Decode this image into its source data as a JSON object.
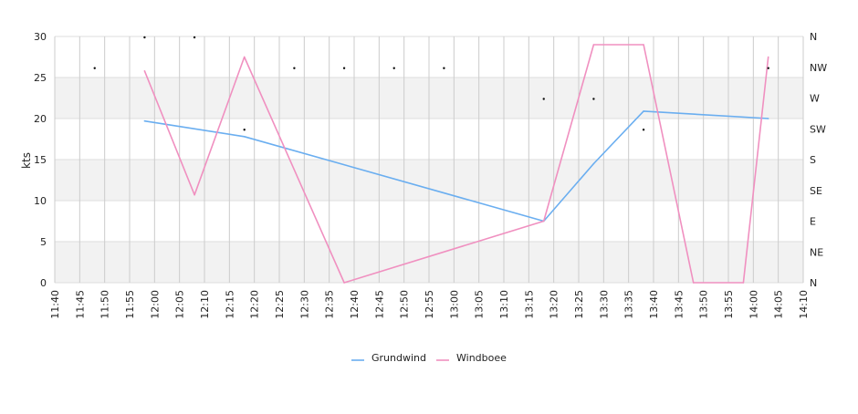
{
  "chart_data": {
    "type": "line",
    "title": "",
    "xlabel": "",
    "ylabel": "kts",
    "ylim": [
      0,
      30
    ],
    "y_ticks": [
      0,
      5,
      10,
      15,
      20,
      25,
      30
    ],
    "x_ticks": [
      "11:40",
      "11:45",
      "11:50",
      "11:55",
      "12:00",
      "12:05",
      "12:10",
      "12:15",
      "12:20",
      "12:25",
      "12:30",
      "12:35",
      "12:40",
      "12:45",
      "12:50",
      "12:55",
      "13:00",
      "13:05",
      "13:10",
      "13:15",
      "13:20",
      "13:25",
      "13:30",
      "13:35",
      "13:40",
      "13:45",
      "13:50",
      "13:55",
      "14:00",
      "14:05",
      "14:10"
    ],
    "x_range": [
      "11:40",
      "14:10"
    ],
    "right_axis_ticks": [
      "N",
      "NE",
      "E",
      "SE",
      "S",
      "SW",
      "W",
      "NW",
      "N"
    ],
    "grid": true,
    "legend_position": "bottom",
    "series": [
      {
        "name": "Grundwind",
        "color": "#6aaef0",
        "points": [
          {
            "x": "11:58",
            "y": 19.7
          },
          {
            "x": "12:18",
            "y": 17.8
          },
          {
            "x": "13:18",
            "y": 7.5
          },
          {
            "x": "13:28",
            "y": 14.5
          },
          {
            "x": "13:38",
            "y": 20.9
          },
          {
            "x": "14:03",
            "y": 20.0
          }
        ]
      },
      {
        "name": "Windboee",
        "color": "#f090c0",
        "points": [
          {
            "x": "11:58",
            "y": 25.8
          },
          {
            "x": "12:08",
            "y": 10.7
          },
          {
            "x": "12:18",
            "y": 27.5
          },
          {
            "x": "12:38",
            "y": 0
          },
          {
            "x": "13:18",
            "y": 7.5
          },
          {
            "x": "13:28",
            "y": 29.0
          },
          {
            "x": "13:38",
            "y": 29.0
          },
          {
            "x": "13:48",
            "y": 0
          },
          {
            "x": "13:58",
            "y": 0
          },
          {
            "x": "14:03",
            "y": 27.5
          }
        ]
      }
    ],
    "direction_markers": [
      {
        "x": "11:48",
        "dir": "NW"
      },
      {
        "x": "11:58",
        "dir": "N"
      },
      {
        "x": "12:08",
        "dir": "N"
      },
      {
        "x": "12:18",
        "dir": "SW"
      },
      {
        "x": "12:28",
        "dir": "NW"
      },
      {
        "x": "12:38",
        "dir": "NW"
      },
      {
        "x": "12:48",
        "dir": "NW"
      },
      {
        "x": "12:58",
        "dir": "NW"
      },
      {
        "x": "13:18",
        "dir": "W"
      },
      {
        "x": "13:28",
        "dir": "W"
      },
      {
        "x": "13:38",
        "dir": "SW"
      },
      {
        "x": "14:03",
        "dir": "NW"
      }
    ]
  }
}
